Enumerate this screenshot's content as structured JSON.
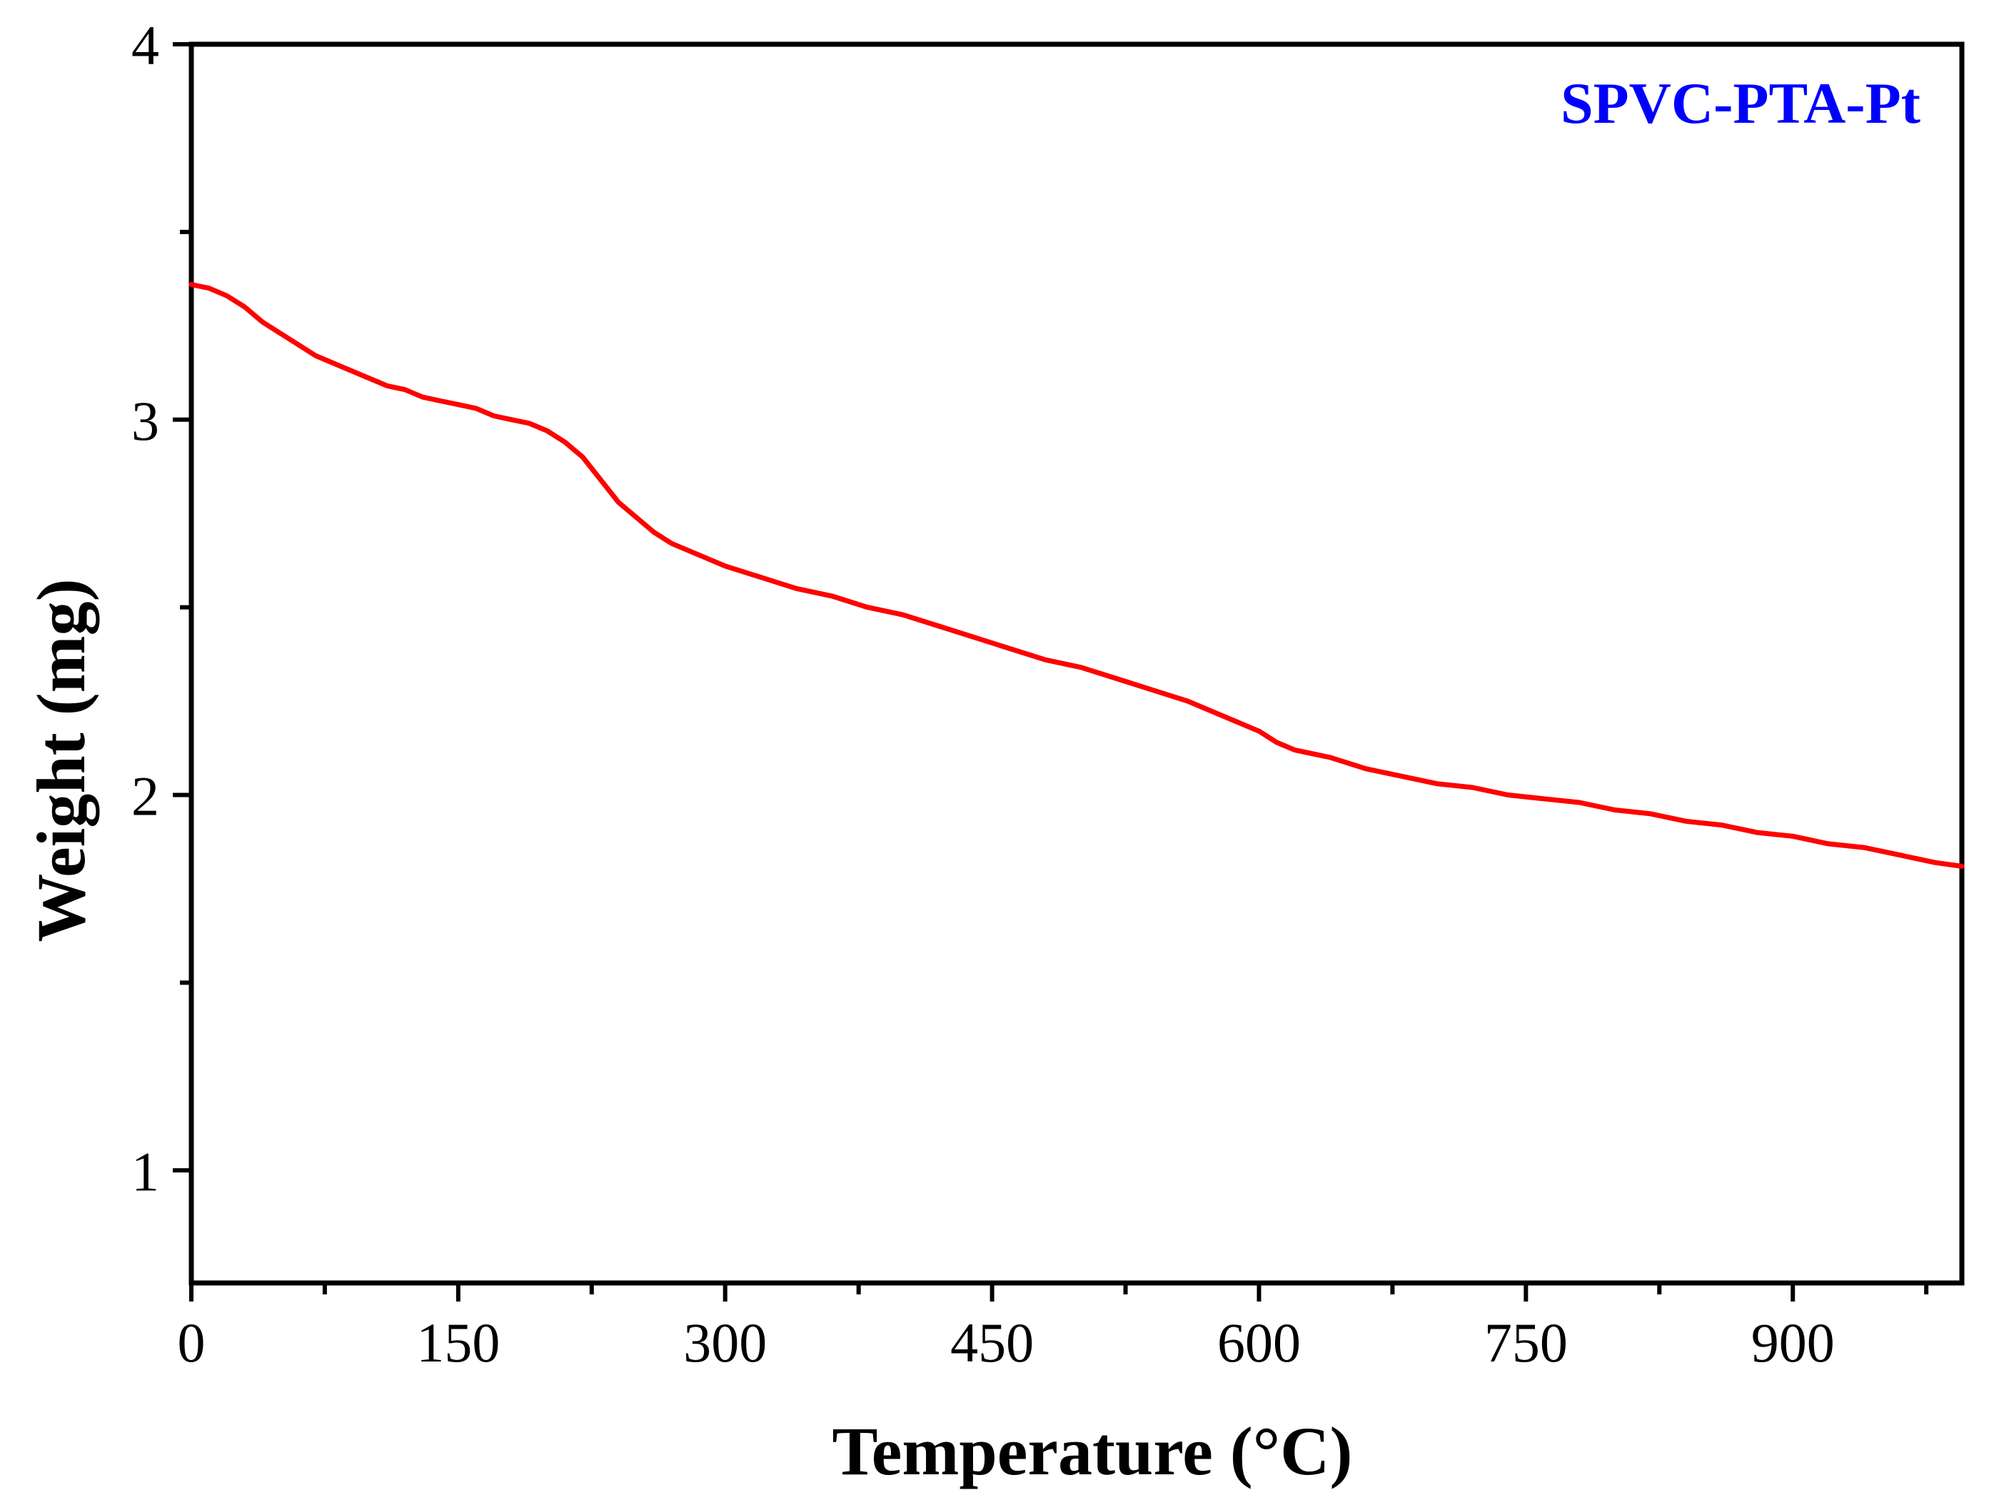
{
  "chart_data": {
    "type": "line",
    "title": "",
    "xlabel": "Temperature (°C)",
    "ylabel": "Weight (mg)",
    "xlim": [
      0,
      995
    ],
    "ylim": [
      0.7,
      4
    ],
    "x_ticks": [
      0,
      150,
      300,
      450,
      600,
      750,
      900
    ],
    "x_minor_ticks": [
      75,
      225,
      375,
      525,
      675,
      825,
      975
    ],
    "y_ticks": [
      1,
      2,
      3,
      4
    ],
    "y_minor_ticks": [
      1.5,
      2.5,
      3.5
    ],
    "grid": false,
    "legend_position": "top-right",
    "colors": {
      "series": "#ff0000",
      "legend_text": "#0000ff",
      "axis": "#000000"
    },
    "series": [
      {
        "name": "SPVC-PTA-Pt",
        "x": [
          0,
          10,
          20,
          30,
          40,
          50,
          60,
          70,
          80,
          90,
          100,
          110,
          120,
          130,
          140,
          150,
          160,
          170,
          180,
          190,
          200,
          210,
          220,
          230,
          240,
          250,
          260,
          270,
          280,
          290,
          300,
          320,
          340,
          360,
          380,
          400,
          420,
          440,
          460,
          480,
          500,
          520,
          540,
          560,
          580,
          600,
          610,
          620,
          640,
          660,
          680,
          700,
          720,
          740,
          760,
          780,
          800,
          820,
          840,
          860,
          880,
          900,
          920,
          940,
          960,
          980,
          995
        ],
        "y": [
          3.36,
          3.35,
          3.33,
          3.3,
          3.26,
          3.23,
          3.2,
          3.17,
          3.15,
          3.13,
          3.11,
          3.09,
          3.08,
          3.06,
          3.05,
          3.04,
          3.03,
          3.01,
          3.0,
          2.99,
          2.97,
          2.94,
          2.9,
          2.84,
          2.78,
          2.74,
          2.7,
          2.67,
          2.65,
          2.63,
          2.61,
          2.58,
          2.55,
          2.53,
          2.5,
          2.48,
          2.45,
          2.42,
          2.39,
          2.36,
          2.34,
          2.31,
          2.28,
          2.25,
          2.21,
          2.17,
          2.14,
          2.12,
          2.1,
          2.07,
          2.05,
          2.03,
          2.02,
          2.0,
          1.99,
          1.98,
          1.96,
          1.95,
          1.93,
          1.92,
          1.9,
          1.89,
          1.87,
          1.86,
          1.84,
          1.82,
          1.81
        ]
      }
    ]
  }
}
